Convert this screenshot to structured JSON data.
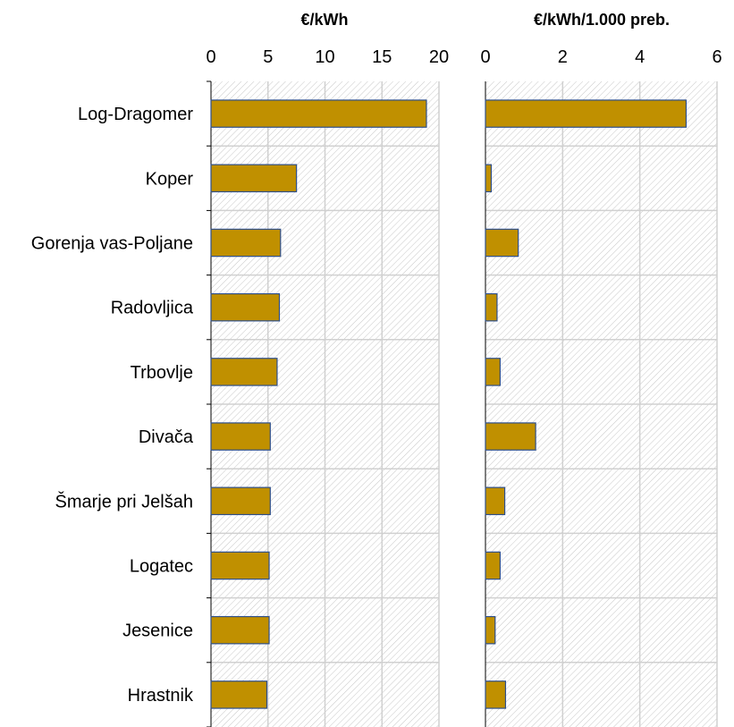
{
  "colors": {
    "bar_fill": "#c09000",
    "bar_stroke": "#2e4f8c",
    "hatch": "#c8c8c8",
    "grid": "#d0d0d0",
    "axis": "#000000"
  },
  "chart_data": [
    {
      "type": "bar",
      "orientation": "horizontal",
      "title": "€/kWh",
      "categories": [
        "Log-Dragomer",
        "Koper",
        "Gorenja vas-Poljane",
        "Radovljica",
        "Trbovlje",
        "Divača",
        "Šmarje pri Jelšah",
        "Logatec",
        "Jesenice",
        "Hrastnik"
      ],
      "values": [
        18.9,
        7.5,
        6.1,
        6.0,
        5.8,
        5.2,
        5.2,
        5.1,
        5.1,
        4.9
      ],
      "xlim": [
        0,
        20
      ],
      "xticks": [
        "0",
        "5",
        "10",
        "15",
        "20"
      ],
      "grid": true,
      "background": "hatched"
    },
    {
      "type": "bar",
      "orientation": "horizontal",
      "title": "€/kWh/1.000 preb.",
      "categories": [
        "Log-Dragomer",
        "Koper",
        "Gorenja vas-Poljane",
        "Radovljica",
        "Trbovlje",
        "Divača",
        "Šmarje pri Jelšah",
        "Logatec",
        "Jesenice",
        "Hrastnik"
      ],
      "values": [
        5.2,
        0.15,
        0.85,
        0.3,
        0.38,
        1.3,
        0.5,
        0.38,
        0.25,
        0.52
      ],
      "xlim": [
        0,
        6
      ],
      "xticks": [
        "0",
        "2",
        "4",
        "6"
      ],
      "grid": true,
      "background": "hatched"
    }
  ]
}
